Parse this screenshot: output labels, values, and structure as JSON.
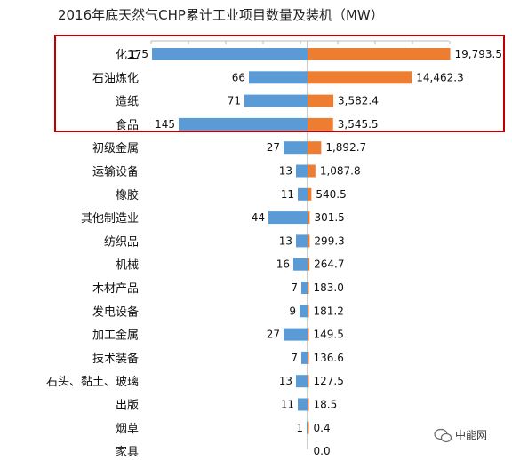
{
  "chart_data": {
    "type": "bar",
    "title": "2016年底天然气CHP累计工业项目数量及装机（MW）",
    "categories": [
      "化工",
      "石油炼化",
      "造纸",
      "食品",
      "初级金属",
      "运输设备",
      "橡胶",
      "其他制造业",
      "纺织品",
      "机械",
      "木材产品",
      "发电设备",
      "加工金属",
      "技术装备",
      "石头、黏土、玻璃",
      "出版",
      "烟草",
      "家具"
    ],
    "series": [
      {
        "values": [
          175,
          66,
          71,
          145,
          27,
          13,
          11,
          44,
          13,
          16,
          7,
          9,
          27,
          7,
          13,
          11,
          1,
          0
        ],
        "labels": [
          "175",
          "66",
          "71",
          "145",
          "27",
          "13",
          "11",
          "44",
          "13",
          "16",
          "7",
          "9",
          "27",
          "7",
          "13",
          "11",
          "1",
          ""
        ]
      },
      {
        "values": [
          19793.5,
          14462.3,
          3582.4,
          3545.5,
          1892.7,
          1087.8,
          540.5,
          301.5,
          299.3,
          264.7,
          183.0,
          181.2,
          149.5,
          136.6,
          127.5,
          18.5,
          0.4,
          0.0
        ],
        "labels": [
          "19,793.5",
          "14,462.3",
          "3,582.4",
          "3,545.5",
          "1,892.7",
          "1,087.8",
          "540.5",
          "301.5",
          "299.3",
          "264.7",
          "183.0",
          "181.2",
          "149.5",
          "136.6",
          "127.5",
          "18.5",
          "0.4",
          "0.0"
        ]
      }
    ],
    "legend": "none",
    "grid": false
  },
  "colors": {
    "count_bar": "#5b9bd5",
    "capacity_bar": "#ed7d31",
    "highlight_box": "#c00000"
  },
  "watermark": {
    "icon": "wechat-icon",
    "text": "中能网"
  }
}
